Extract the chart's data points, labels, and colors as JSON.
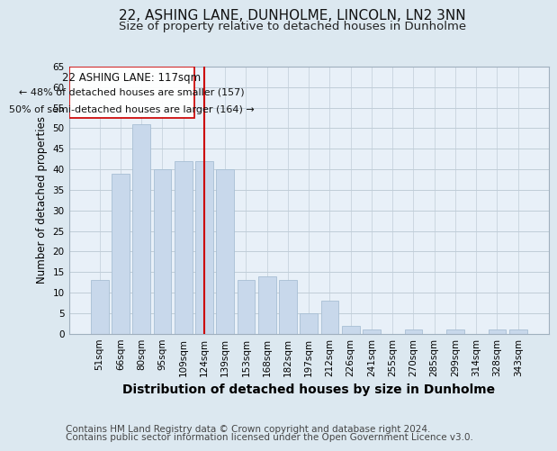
{
  "title": "22, ASHING LANE, DUNHOLME, LINCOLN, LN2 3NN",
  "subtitle": "Size of property relative to detached houses in Dunholme",
  "xlabel": "Distribution of detached houses by size in Dunholme",
  "ylabel": "Number of detached properties",
  "bar_labels": [
    "51sqm",
    "66sqm",
    "80sqm",
    "95sqm",
    "109sqm",
    "124sqm",
    "139sqm",
    "153sqm",
    "168sqm",
    "182sqm",
    "197sqm",
    "212sqm",
    "226sqm",
    "241sqm",
    "255sqm",
    "270sqm",
    "285sqm",
    "299sqm",
    "314sqm",
    "328sqm",
    "343sqm"
  ],
  "bar_values": [
    13,
    39,
    51,
    40,
    42,
    42,
    40,
    13,
    14,
    13,
    5,
    8,
    2,
    1,
    0,
    1,
    0,
    1,
    0,
    1,
    1
  ],
  "bar_color": "#c8d8eb",
  "bar_edgecolor": "#a8bfd4",
  "vline_bar_index": 5,
  "vline_color": "#cc0000",
  "ylim": [
    0,
    65
  ],
  "yticks": [
    0,
    5,
    10,
    15,
    20,
    25,
    30,
    35,
    40,
    45,
    50,
    55,
    60,
    65
  ],
  "annotation_title": "22 ASHING LANE: 117sqm",
  "annotation_line1": "← 48% of detached houses are smaller (157)",
  "annotation_line2": "50% of semi-detached houses are larger (164) →",
  "footer_line1": "Contains HM Land Registry data © Crown copyright and database right 2024.",
  "footer_line2": "Contains public sector information licensed under the Open Government Licence v3.0.",
  "background_color": "#dce8f0",
  "plot_background": "#e8f0f8",
  "grid_color": "#c0cdd8",
  "title_fontsize": 11,
  "subtitle_fontsize": 9.5,
  "xlabel_fontsize": 10,
  "ylabel_fontsize": 8.5,
  "tick_fontsize": 7.5,
  "annot_fontsize": 8.5,
  "footer_fontsize": 7.5
}
